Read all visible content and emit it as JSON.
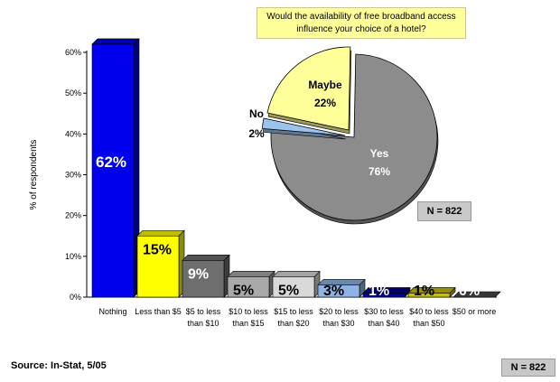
{
  "chart_data": [
    {
      "type": "bar",
      "ylabel": "% of respondents",
      "ylim": [
        0,
        60
      ],
      "yticks": [
        "0%",
        "10%",
        "20%",
        "30%",
        "40%",
        "50%",
        "60%"
      ],
      "categories": [
        "Nothing",
        "Less than $5",
        "$5 to less than $10",
        "$10 to less than $15",
        "$15 to less than $20",
        "$20 to less than $30",
        "$30 to less than $40",
        "$40 to less than $50",
        "$50 or more"
      ],
      "category_lines": [
        [
          "Nothing"
        ],
        [
          "Less than $5"
        ],
        [
          "$5 to less",
          "than $10"
        ],
        [
          "$10 to less",
          "than $15"
        ],
        [
          "$15 to less",
          "than $20"
        ],
        [
          "$20 to less",
          "than $30"
        ],
        [
          "$30 to less",
          "than $40"
        ],
        [
          "$40 to less",
          "than $50"
        ],
        [
          "$50 or more"
        ]
      ],
      "values": [
        62,
        15,
        9,
        5,
        5,
        3,
        1,
        1,
        0
      ],
      "labels": [
        "62%",
        "15%",
        "9%",
        "5%",
        "5%",
        "3%",
        "1%",
        "1%",
        "0%"
      ],
      "colors": [
        "#0000ee",
        "#ffff00",
        "#6e6e6e",
        "#a9a9a9",
        "#d9d9d9",
        "#8fb4e3",
        "#000099",
        "#c9c100",
        "#4a4a4a"
      ],
      "label_colors": [
        "#ffffff",
        "#000000",
        "#ffffff",
        "#000000",
        "#000000",
        "#000000",
        "#ffffff",
        "#000000",
        "#ffffff"
      ]
    },
    {
      "type": "pie",
      "title": "Would the availability of free broadband access influence your choice of a hotel?",
      "slices": [
        {
          "name": "Yes",
          "value": 76,
          "label": "76%",
          "color": "#8c8c8c"
        },
        {
          "name": "No",
          "value": 2,
          "label": "2%",
          "color": "#9cc3ec"
        },
        {
          "name": "Maybe",
          "value": 22,
          "label": "22%",
          "color": "#ffff99"
        }
      ],
      "n_label": "N = 822"
    }
  ],
  "footer": {
    "source": "Source:  In-Stat, 5/05",
    "n_label": "N = 822"
  }
}
